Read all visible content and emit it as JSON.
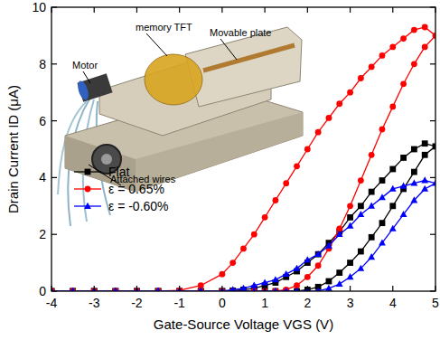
{
  "chart_data": {
    "type": "line",
    "x_label": "Gate-Source Voltage VGS (V)",
    "y_label": "Drain Current ID (μA)",
    "xlim": [
      -4,
      5
    ],
    "ylim": [
      0,
      10
    ],
    "xticks": [
      -4,
      -3,
      -2,
      -1,
      0,
      1,
      2,
      3,
      4,
      5
    ],
    "yticks": [
      0,
      2,
      4,
      6,
      8,
      10
    ],
    "grid": false,
    "legend": "lower left",
    "annotations": [
      {
        "text": "memory TFT"
      },
      {
        "text": "Movable plate"
      },
      {
        "text": "Motor"
      },
      {
        "text": "Attached wires"
      }
    ],
    "x": [
      -4,
      -3.5,
      -3,
      -2.5,
      -2,
      -1.5,
      -1,
      -0.5,
      0,
      0.25,
      0.5,
      0.75,
      1,
      1.25,
      1.5,
      1.75,
      2,
      2.25,
      2.5,
      2.75,
      3,
      3.25,
      3.5,
      3.75,
      4,
      4.25,
      4.5,
      4.75,
      5,
      4.75,
      4.5,
      4.25,
      4,
      3.75,
      3.5,
      3.25,
      3,
      2.75,
      2.5,
      2.25,
      2,
      1.75,
      1.5,
      1.25,
      1,
      0.75,
      0.5,
      0.25,
      0,
      -0.5,
      -1,
      -1.5,
      -2,
      -2.5,
      -3,
      -3.5,
      -4
    ],
    "series": [
      {
        "name": "Flat",
        "color": "#000000",
        "marker": "square",
        "line_style": "solid",
        "values": [
          0,
          0,
          0,
          0,
          0,
          0,
          0,
          0,
          0,
          0,
          0,
          0,
          0,
          0,
          0,
          0,
          0.05,
          0.15,
          0.35,
          0.65,
          1.0,
          1.4,
          1.9,
          2.4,
          3.0,
          3.6,
          4.2,
          4.8,
          5.1,
          5.2,
          5.0,
          4.7,
          4.3,
          3.9,
          3.5,
          3.0,
          2.6,
          2.1,
          1.7,
          1.3,
          1.0,
          0.7,
          0.5,
          0.3,
          0.2,
          0.1,
          0.05,
          0.02,
          0,
          0,
          0,
          0,
          0,
          0,
          0,
          0,
          0
        ]
      },
      {
        "name": "ε = 0.65%",
        "color": "#ff0000",
        "marker": "circle",
        "line_style": "solid",
        "values": [
          0,
          0,
          0,
          0,
          0,
          0,
          0,
          0,
          0,
          0,
          0,
          0,
          0,
          0,
          0.05,
          0.2,
          0.5,
          0.9,
          1.5,
          2.2,
          3.0,
          3.9,
          4.8,
          5.7,
          6.5,
          7.3,
          8.0,
          8.6,
          9.0,
          9.3,
          9.2,
          8.9,
          8.6,
          8.3,
          7.9,
          7.5,
          7.0,
          6.6,
          6.1,
          5.6,
          5.0,
          4.4,
          3.8,
          3.2,
          2.6,
          2.0,
          1.5,
          1.0,
          0.6,
          0.2,
          0.03,
          0,
          0,
          0,
          0,
          0,
          0
        ]
      },
      {
        "name": "ε = -0.60%",
        "color": "#0000ff",
        "marker": "triangle",
        "line_style": "solid",
        "values": [
          0,
          0,
          0,
          0,
          0,
          0,
          0,
          0,
          0,
          0,
          0,
          0,
          0,
          0,
          0,
          0,
          0,
          0,
          0.1,
          0.25,
          0.5,
          0.8,
          1.2,
          1.7,
          2.2,
          2.7,
          3.2,
          3.6,
          3.8,
          3.9,
          3.8,
          3.7,
          3.6,
          3.3,
          3.0,
          2.7,
          2.3,
          2.0,
          1.6,
          1.3,
          1.1,
          0.8,
          0.6,
          0.4,
          0.3,
          0.2,
          0.1,
          0.05,
          0,
          0,
          0,
          0,
          0,
          0,
          0,
          0,
          0
        ]
      }
    ]
  }
}
